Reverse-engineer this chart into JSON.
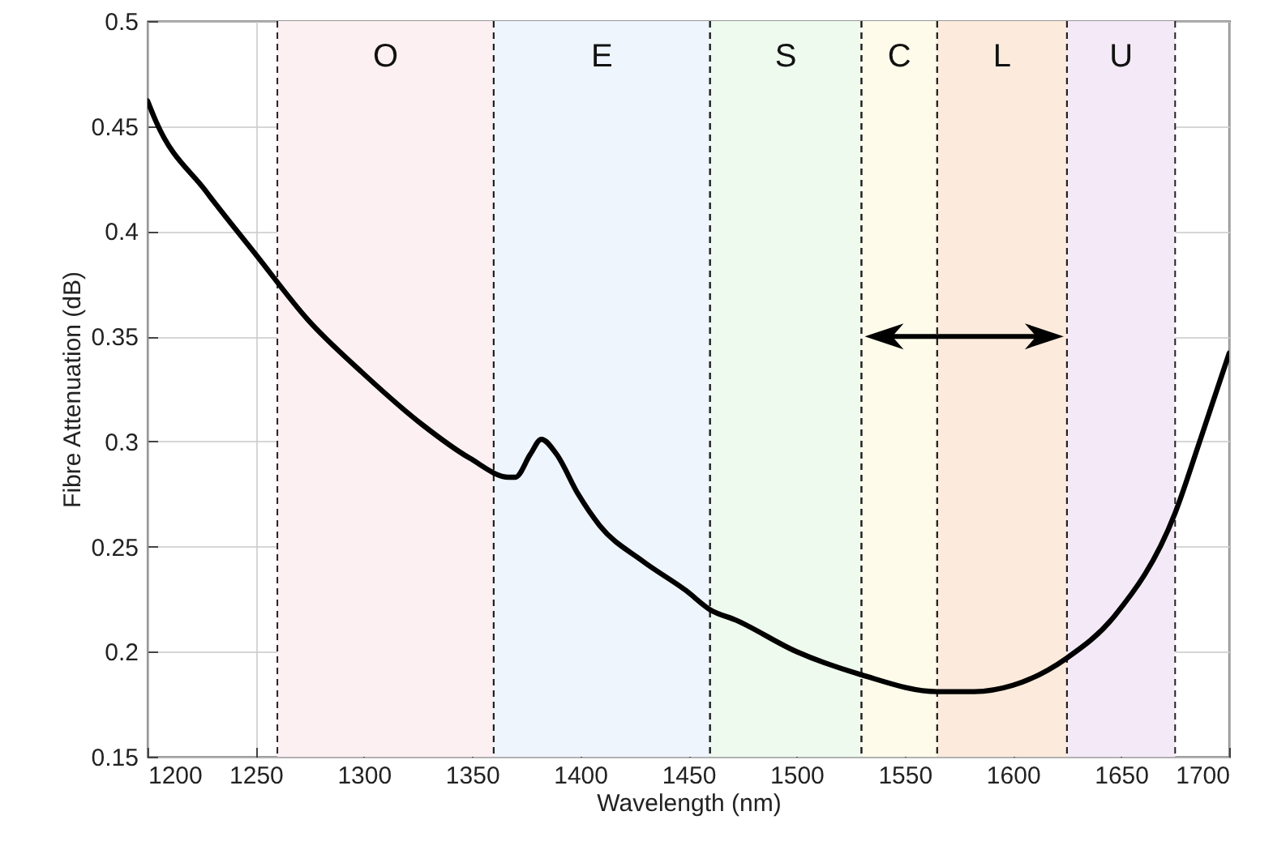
{
  "chart_data": {
    "type": "line",
    "xlabel": "Wavelength (nm)",
    "ylabel": "Fibre Attenuation (dB)",
    "series": [
      {
        "color": "#000000",
        "x": [
          1200,
          1204,
          1227,
          1250,
          1274,
          1299,
          1327,
          1349,
          1367,
          1370,
          1377,
          1382,
          1389,
          1399,
          1409,
          1429,
          1449,
          1460,
          1472,
          1500,
          1530,
          1565,
          1582,
          1600,
          1625,
          1647,
          1675,
          1687,
          1700
        ],
        "values": [
          0.462,
          0.452,
          0.419,
          0.389,
          0.358,
          0.333,
          0.308,
          0.292,
          0.283,
          0.283,
          0.294,
          0.301,
          0.294,
          0.275,
          0.26,
          0.243,
          0.229,
          0.22,
          0.215,
          0.2,
          0.189,
          0.181,
          0.181,
          0.184,
          0.197,
          0.217,
          0.266,
          0.302,
          0.342
        ]
      }
    ],
    "xlim": [
      1200,
      1700
    ],
    "ylim": [
      0.15,
      0.5
    ],
    "xticks": [
      1200,
      1250,
      1300,
      1350,
      1400,
      1450,
      1500,
      1550,
      1600,
      1650,
      1700
    ],
    "yticks": [
      0.15,
      0.2,
      0.25,
      0.3,
      0.35,
      0.4,
      0.45,
      0.5
    ],
    "bands": [
      {
        "axis": "x",
        "from": 1260,
        "to": 1360,
        "label": "O",
        "color": "#fdf0f3"
      },
      {
        "axis": "x",
        "from": 1360,
        "to": 1460,
        "label": "E",
        "color": "#eef5fd"
      },
      {
        "axis": "x",
        "from": 1460,
        "to": 1530,
        "label": "S",
        "color": "#eefaee"
      },
      {
        "axis": "x",
        "from": 1530,
        "to": 1565,
        "label": "C",
        "color": "#fefbea"
      },
      {
        "axis": "x",
        "from": 1565,
        "to": 1625,
        "label": "L",
        "color": "#fcebdc"
      },
      {
        "axis": "x",
        "from": 1625,
        "to": 1675,
        "label": "U",
        "color": "#f4e9f7"
      }
    ],
    "grid": true,
    "marker": "none",
    "line_style": "solid"
  }
}
